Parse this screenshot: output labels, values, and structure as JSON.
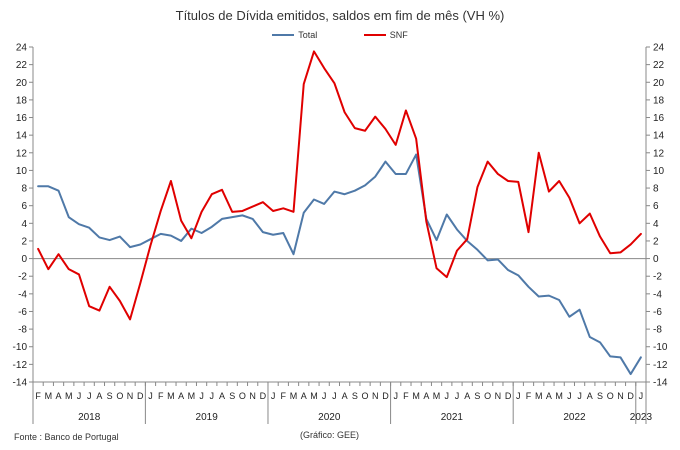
{
  "chart_data": {
    "type": "line",
    "title": "Títulos de Dívida emitidos, saldos em fim de mês  (VH %)",
    "source": "Fonte : Banco de Portugal",
    "credit": "(Gráfico:  GEE)",
    "month_labels": [
      "F",
      "M",
      "A",
      "M",
      "J",
      "J",
      "A",
      "S",
      "O",
      "N",
      "D",
      "J",
      "F",
      "M",
      "A",
      "M",
      "J",
      "J",
      "A",
      "S",
      "O",
      "N",
      "D",
      "J",
      "F",
      "M",
      "A",
      "M",
      "J",
      "J",
      "A",
      "S",
      "O",
      "N",
      "D",
      "J",
      "F",
      "M",
      "A",
      "M",
      "J",
      "J",
      "A",
      "S",
      "O",
      "N",
      "D",
      "J",
      "F",
      "M",
      "A",
      "M",
      "J",
      "J",
      "A",
      "S",
      "O",
      "N",
      "D",
      "J"
    ],
    "years": [
      {
        "label": "2018",
        "months": 11
      },
      {
        "label": "2019",
        "months": 12
      },
      {
        "label": "2020",
        "months": 12
      },
      {
        "label": "2021",
        "months": 12
      },
      {
        "label": "2022",
        "months": 12
      },
      {
        "label": "2023",
        "months": 1
      }
    ],
    "ylim": [
      -14,
      24
    ],
    "ytick_step": 2,
    "grid": false,
    "legend_position": "top-center",
    "series": [
      {
        "name": "Total",
        "color": "#4f79a8",
        "values": [
          8.2,
          8.2,
          7.7,
          4.7,
          3.9,
          3.5,
          2.4,
          2.1,
          2.5,
          1.3,
          1.6,
          2.2,
          2.8,
          2.6,
          2.0,
          3.4,
          2.9,
          3.6,
          4.5,
          4.7,
          4.9,
          4.5,
          3.0,
          2.7,
          2.9,
          0.5,
          5.2,
          6.7,
          6.2,
          7.6,
          7.3,
          7.7,
          8.3,
          9.3,
          11.0,
          9.6,
          9.6,
          11.8,
          4.5,
          2.1,
          5.0,
          3.3,
          2.0,
          1.0,
          -0.2,
          -0.1,
          -1.3,
          -1.9,
          -3.2,
          -4.3,
          -4.2,
          -4.7,
          -6.6,
          -5.8,
          -8.9,
          -9.5,
          -11.1,
          -11.2,
          -13.1,
          -11.2
        ]
      },
      {
        "name": "SNF",
        "color": "#e00000",
        "values": [
          1.1,
          -1.2,
          0.5,
          -1.2,
          -1.8,
          -5.4,
          -5.9,
          -3.2,
          -4.8,
          -6.9,
          -2.8,
          1.5,
          5.4,
          8.8,
          4.3,
          2.3,
          5.3,
          7.3,
          7.8,
          5.3,
          5.4,
          5.9,
          6.4,
          5.4,
          5.7,
          5.3,
          19.8,
          23.5,
          21.6,
          19.9,
          16.6,
          14.8,
          14.5,
          16.1,
          14.7,
          12.9,
          16.8,
          13.6,
          4.2,
          -1.1,
          -2.1,
          0.9,
          2.2,
          8.1,
          11.0,
          9.6,
          8.8,
          8.7,
          3.0,
          12.0,
          7.6,
          8.8,
          6.9,
          4.0,
          5.1,
          2.5,
          0.6,
          0.7,
          1.6,
          2.8
        ]
      }
    ]
  }
}
